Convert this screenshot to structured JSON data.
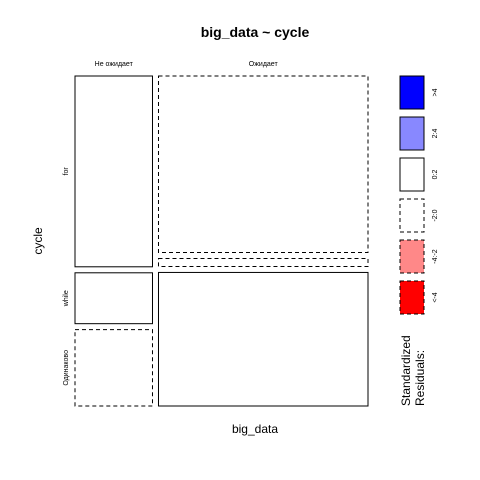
{
  "chart_data": {
    "type": "mosaic",
    "title": "big_data ~ cycle",
    "xlabel": "big_data",
    "ylabel": "cycle",
    "x_categories": [
      "Не ожидает",
      "Ожидает"
    ],
    "y_categories": [
      "for",
      "while",
      "Одинаково"
    ],
    "cells": [
      {
        "x": "Не ожидает",
        "y": "for",
        "proportion_x": 0.27,
        "proportion_y_within_x": 0.6,
        "residual_class": "0:2"
      },
      {
        "x": "Не ожидает",
        "y": "while",
        "proportion_x": 0.27,
        "proportion_y_within_x": 0.16,
        "residual_class": "0:2"
      },
      {
        "x": "Не ожидает",
        "y": "Одинаково",
        "proportion_x": 0.27,
        "proportion_y_within_x": 0.24,
        "residual_class": "-2:0"
      },
      {
        "x": "Ожидает",
        "y": "for",
        "proportion_x": 0.73,
        "proportion_y_within_x": 0.555,
        "residual_class": "-2:0"
      },
      {
        "x": "Ожидает",
        "y": "while",
        "proportion_x": 0.73,
        "proportion_y_within_x": 0.025,
        "residual_class": "-2:0"
      },
      {
        "x": "Ожидает",
        "y": "Одинаково",
        "proportion_x": 0.73,
        "proportion_y_within_x": 0.42,
        "residual_class": "0:2"
      }
    ],
    "legend": {
      "title_line1": "Standardized",
      "title_line2": "Residuals:",
      "position": "right",
      "items": [
        {
          "label": ">4",
          "color": "#0000ff",
          "dashed": false
        },
        {
          "label": "2:4",
          "color": "#8888ff",
          "dashed": false
        },
        {
          "label": "0:2",
          "color": "#ffffff",
          "dashed": false
        },
        {
          "label": "-2:0",
          "color": "#ffffff",
          "dashed": true
        },
        {
          "label": "-4:-2",
          "color": "#ff8888",
          "dashed": true
        },
        {
          "label": "<-4",
          "color": "#ff0000",
          "dashed": true
        }
      ]
    }
  }
}
